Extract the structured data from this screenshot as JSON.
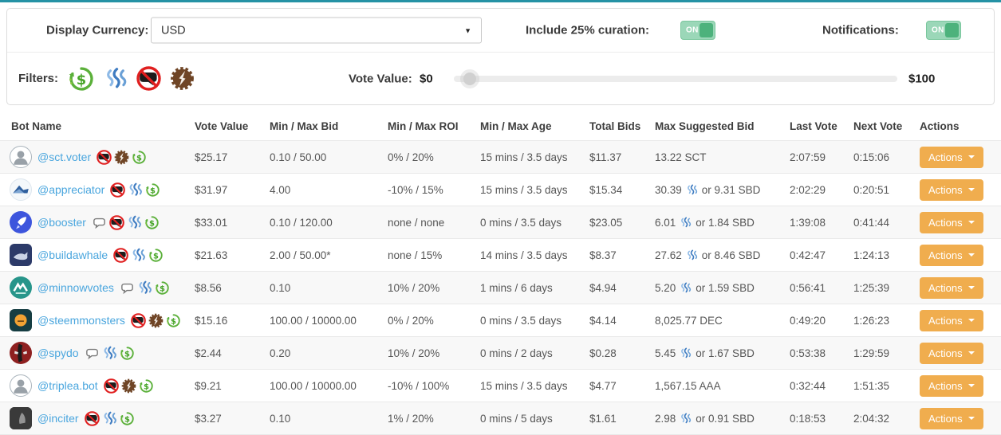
{
  "colors": {
    "top_accent": "#2592a5",
    "action_button_orange": "#f0ad4e",
    "toggle_green": "#4db27c",
    "link_blue": "#4aa6de",
    "steem_blue": "#3f7cc1",
    "filter_green": "#5bb03a",
    "no_comment_red": "#e01f1f",
    "sp_badge_brown": "#6f4526"
  },
  "controls": {
    "display_currency_label": "Display Currency:",
    "display_currency_value": "USD",
    "curation_label": "Include 25% curation:",
    "curation_state": "ON",
    "notifications_label": "Notifications:",
    "notifications_state": "ON",
    "filters_label": "Filters:",
    "filter_icons": [
      "money-back",
      "steem",
      "no-comment",
      "sp-badge"
    ],
    "vote_value_label": "Vote Value:",
    "vote_value_min": "$0",
    "vote_value_max": "$100"
  },
  "table": {
    "columns": [
      "Bot Name",
      "Vote Value",
      "Min / Max Bid",
      "Min / Max ROI",
      "Min / Max Age",
      "Total Bids",
      "Max Suggested Bid",
      "Last Vote",
      "Next Vote",
      "Actions"
    ],
    "actions_label": "Actions",
    "rows": [
      {
        "name": "@sct.voter",
        "avatar": {
          "glyph": "person",
          "bg": "#ffffff",
          "shape": "circle",
          "border": "#aab4bc"
        },
        "badges": [
          "no-comment",
          "sp-badge",
          "money-back"
        ],
        "vote_value": "$25.17",
        "bid": "0.10 / 50.00",
        "roi": "0% / 20%",
        "age": "15 mins / 3.5 days",
        "total_bids": "$11.37",
        "max_bid": {
          "pre": "13.22 SCT",
          "steem": false,
          "post": ""
        },
        "last_vote": "2:07:59",
        "next_vote": "0:15:06"
      },
      {
        "name": "@appreciator",
        "avatar": {
          "glyph": "mountain",
          "bg": "#f4f8fb",
          "shape": "circle",
          "border": "#dde6ee"
        },
        "badges": [
          "no-comment",
          "steem",
          "money-back"
        ],
        "vote_value": "$31.97",
        "bid": "4.00",
        "roi": "-10% / 15%",
        "age": "15 mins / 3.5 days",
        "total_bids": "$15.34",
        "max_bid": {
          "pre": "30.39",
          "steem": true,
          "post": "or 9.31 SBD"
        },
        "last_vote": "2:02:29",
        "next_vote": "0:20:51"
      },
      {
        "name": "@booster",
        "avatar": {
          "glyph": "rocket",
          "bg": "#3d55dd",
          "shape": "circle"
        },
        "badges": [
          "comment",
          "no-comment",
          "steem",
          "money-back"
        ],
        "vote_value": "$33.01",
        "bid": "0.10 / 120.00",
        "roi": "none / none",
        "age": "0 mins / 3.5 days",
        "total_bids": "$23.05",
        "max_bid": {
          "pre": "6.01",
          "steem": true,
          "post": "or 1.84 SBD"
        },
        "last_vote": "1:39:08",
        "next_vote": "0:41:44"
      },
      {
        "name": "@buildawhale",
        "avatar": {
          "glyph": "whale",
          "bg": "#2c3a69",
          "shape": "rounded"
        },
        "badges": [
          "no-comment",
          "steem",
          "money-back"
        ],
        "vote_value": "$21.63",
        "bid": "2.00 / 50.00*",
        "roi": "none / 15%",
        "age": "14 mins / 3.5 days",
        "total_bids": "$8.37",
        "max_bid": {
          "pre": "27.62",
          "steem": true,
          "post": "or 8.46 SBD"
        },
        "last_vote": "0:42:47",
        "next_vote": "1:24:13"
      },
      {
        "name": "@minnowvotes",
        "avatar": {
          "glyph": "minnow",
          "bg": "#27958a",
          "shape": "circle"
        },
        "badges": [
          "comment",
          "steem",
          "money-back"
        ],
        "vote_value": "$8.56",
        "bid": "0.10",
        "roi": "10% / 20%",
        "age": "1 mins / 6 days",
        "total_bids": "$4.94",
        "max_bid": {
          "pre": "5.20",
          "steem": true,
          "post": "or 1.59 SBD"
        },
        "last_vote": "0:56:41",
        "next_vote": "1:25:39"
      },
      {
        "name": "@steemmonsters",
        "avatar": {
          "glyph": "monster",
          "bg": "#163d42",
          "shape": "rounded"
        },
        "badges": [
          "no-comment",
          "sp-badge",
          "money-back"
        ],
        "vote_value": "$15.16",
        "bid": "100.00 / 10000.00",
        "roi": "0% / 20%",
        "age": "0 mins / 3.5 days",
        "total_bids": "$4.14",
        "max_bid": {
          "pre": "8,025.77 DEC",
          "steem": false,
          "post": ""
        },
        "last_vote": "0:49:20",
        "next_vote": "1:26:23"
      },
      {
        "name": "@spydo",
        "avatar": {
          "glyph": "mask",
          "bg": "#8e2020",
          "shape": "circle"
        },
        "badges": [
          "comment",
          "steem",
          "money-back"
        ],
        "vote_value": "$2.44",
        "bid": "0.20",
        "roi": "10% / 20%",
        "age": "0 mins / 2 days",
        "total_bids": "$0.28",
        "max_bid": {
          "pre": "5.45",
          "steem": true,
          "post": "or 1.67 SBD"
        },
        "last_vote": "0:53:38",
        "next_vote": "1:29:59"
      },
      {
        "name": "@triplea.bot",
        "avatar": {
          "glyph": "person",
          "bg": "#ffffff",
          "shape": "circle",
          "border": "#aab4bc"
        },
        "badges": [
          "no-comment",
          "sp-badge",
          "money-back"
        ],
        "vote_value": "$9.21",
        "bid": "100.00 / 10000.00",
        "roi": "-10% / 100%",
        "age": "15 mins / 3.5 days",
        "total_bids": "$4.77",
        "max_bid": {
          "pre": "1,567.15 AAA",
          "steem": false,
          "post": ""
        },
        "last_vote": "0:32:44",
        "next_vote": "1:51:35"
      },
      {
        "name": "@inciter",
        "avatar": {
          "glyph": "photo",
          "bg": "#2f2f2f",
          "shape": "rounded"
        },
        "badges": [
          "no-comment",
          "steem",
          "money-back"
        ],
        "vote_value": "$3.27",
        "bid": "0.10",
        "roi": "1% / 20%",
        "age": "0 mins / 5 days",
        "total_bids": "$1.61",
        "max_bid": {
          "pre": "2.98",
          "steem": true,
          "post": "or 0.91 SBD"
        },
        "last_vote": "0:18:53",
        "next_vote": "2:04:32"
      }
    ]
  }
}
